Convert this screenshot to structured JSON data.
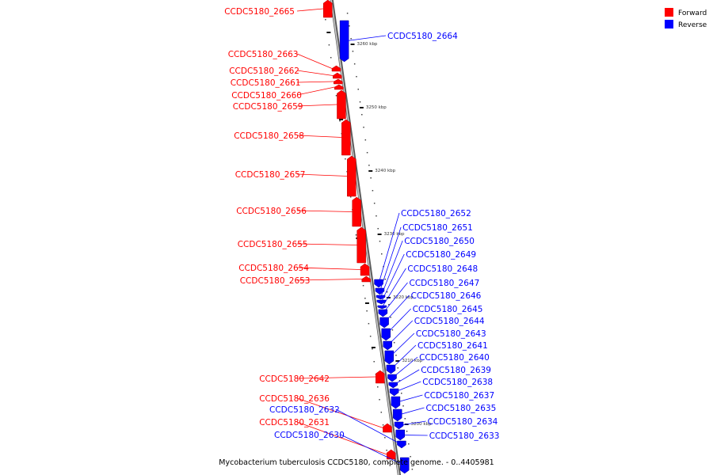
{
  "caption": "Mycobacterium tuberculosis CCDC5180, complete genome. - 0..4405981",
  "legend": [
    {
      "label": "Forward",
      "color": "#ff0000"
    },
    {
      "label": "Reverse",
      "color": "#0000ff"
    }
  ],
  "colors": {
    "forward": "#ff0000",
    "reverse": "#0000ff",
    "backbone": "#8c8c8c"
  },
  "ticks": [
    "3260 kbp",
    "3250 kbp",
    "3240 kbp",
    "3230 kbp",
    "3220 kbp",
    "3210 kbp",
    "3200 kbp"
  ],
  "forward_genes": [
    "CCDC5180_2665",
    "CCDC5180_2663",
    "CCDC5180_2662",
    "CCDC5180_2661",
    "CCDC5180_2660",
    "CCDC5180_2659",
    "CCDC5180_2658",
    "CCDC5180_2657",
    "CCDC5180_2656",
    "CCDC5180_2655",
    "CCDC5180_2654",
    "CCDC5180_2653",
    "CCDC5180_2642",
    "CCDC5180_2636",
    "CCDC5180_2631"
  ],
  "reverse_genes": [
    "CCDC5180_2664",
    "CCDC5180_2652",
    "CCDC5180_2651",
    "CCDC5180_2650",
    "CCDC5180_2649",
    "CCDC5180_2648",
    "CCDC5180_2647",
    "CCDC5180_2646",
    "CCDC5180_2645",
    "CCDC5180_2644",
    "CCDC5180_2643",
    "CCDC5180_2641",
    "CCDC5180_2640",
    "CCDC5180_2639",
    "CCDC5180_2638",
    "CCDC5180_2637",
    "CCDC5180_2635",
    "CCDC5180_2634",
    "CCDC5180_2633",
    "CCDC5180_2632",
    "CCDC5180_2630"
  ]
}
